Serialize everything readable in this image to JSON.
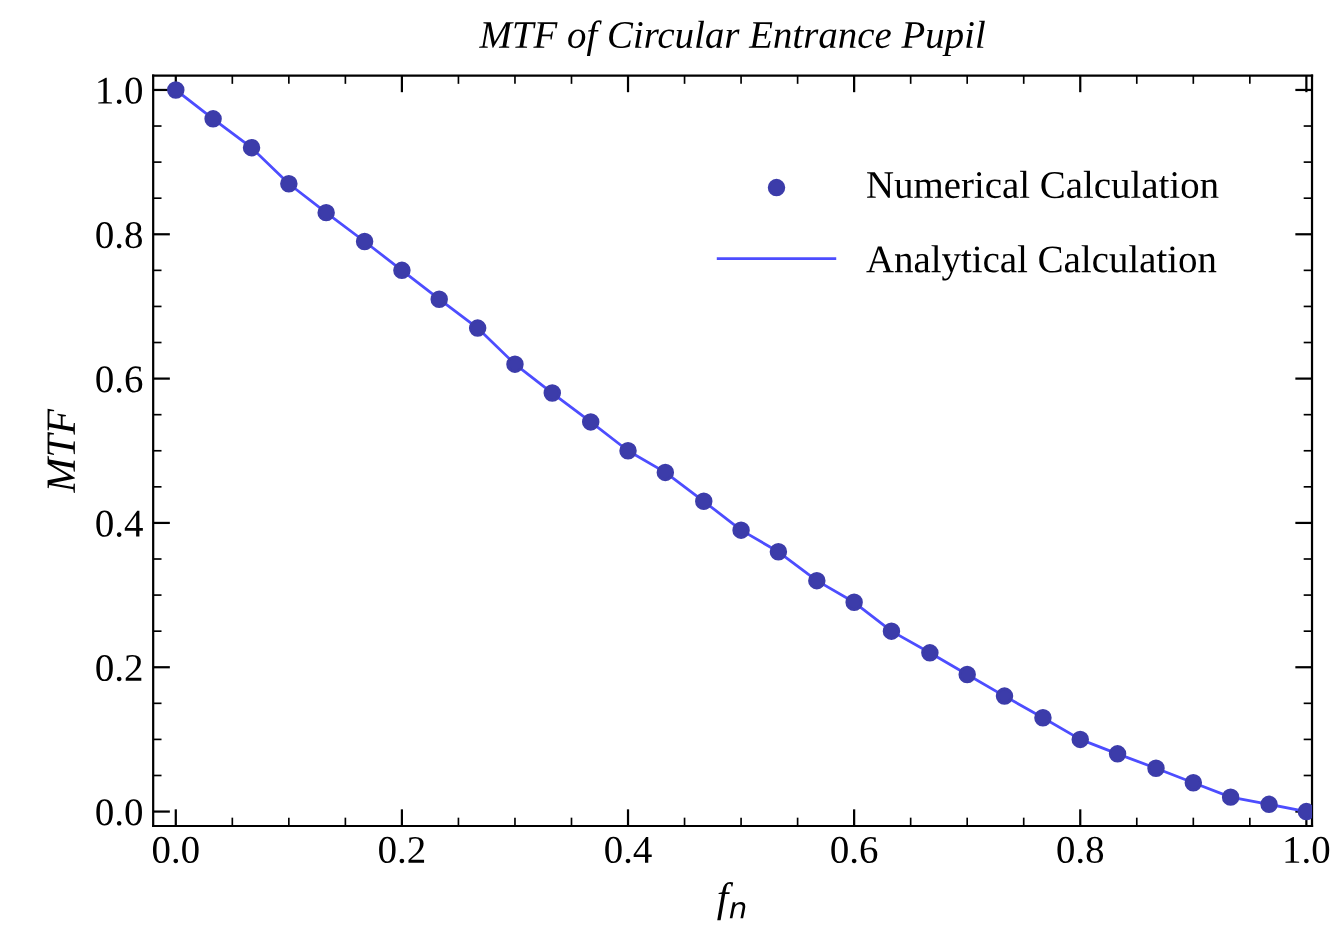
{
  "chart_data": {
    "type": "scatter",
    "title": "MTF of Circular Entrance Pupil",
    "xlabel": "f$_{n}$",
    "ylabel": "MTF",
    "x": [
      0,
      0.033,
      0.067,
      0.1,
      0.133,
      0.167,
      0.2,
      0.233,
      0.267,
      0.3,
      0.333,
      0.367,
      0.4,
      0.433,
      0.467,
      0.5,
      0.533,
      0.567,
      0.6,
      0.633,
      0.667,
      0.7,
      0.733,
      0.767,
      0.8,
      0.833,
      0.867,
      0.9,
      0.933,
      0.967,
      1.0
    ],
    "series": [
      {
        "name": "Numerical Calculation",
        "marker": "circle",
        "color": "#3c3caa",
        "values": [
          1.0,
          0.96,
          0.92,
          0.87,
          0.83,
          0.79,
          0.75,
          0.71,
          0.67,
          0.62,
          0.58,
          0.54,
          0.5,
          0.47,
          0.43,
          0.39,
          0.36,
          0.32,
          0.29,
          0.25,
          0.22,
          0.19,
          0.16,
          0.13,
          0.1,
          0.08,
          0.06,
          0.04,
          0.02,
          0.01,
          0.0
        ]
      },
      {
        "name": "Analytical Calculation",
        "type": "line",
        "marker": "none",
        "line_style": "solid",
        "color": "#4d4dff",
        "values": [
          1.0,
          0.96,
          0.92,
          0.87,
          0.83,
          0.79,
          0.75,
          0.71,
          0.67,
          0.62,
          0.58,
          0.54,
          0.5,
          0.47,
          0.43,
          0.39,
          0.36,
          0.32,
          0.29,
          0.25,
          0.22,
          0.19,
          0.16,
          0.13,
          0.1,
          0.08,
          0.06,
          0.04,
          0.02,
          0.01,
          0.0
        ]
      }
    ],
    "xlim": [
      -0.02,
      1.005
    ],
    "ylim": [
      -0.02,
      1.02
    ],
    "xticks": [
      {
        "value": 0,
        "label": "0.0"
      },
      0.2,
      0.4,
      0.6,
      0.8,
      {
        "value": 1,
        "label": "1.0"
      }
    ],
    "yticks": [
      {
        "value": 0,
        "label": "0.0"
      },
      0.2,
      0.4,
      0.6,
      0.8,
      {
        "value": 1,
        "label": "1.0"
      }
    ],
    "grid": false,
    "legend": "top right"
  }
}
